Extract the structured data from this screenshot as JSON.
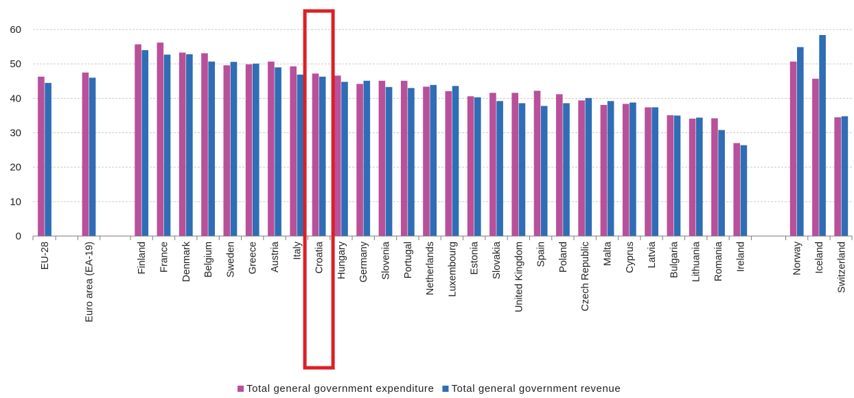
{
  "chart_data": {
    "type": "bar",
    "title": "",
    "xlabel": "",
    "ylabel": "",
    "ylim": [
      0,
      60
    ],
    "yticks": [
      0,
      10,
      20,
      30,
      40,
      50,
      60
    ],
    "grid": true,
    "legend_position": "bottom-center",
    "categories": [
      "EU-28",
      "Euro area (EA-19)",
      "Finland",
      "France",
      "Denmark",
      "Belgium",
      "Sweden",
      "Greece",
      "Austria",
      "Italy",
      "Croatia",
      "Hungary",
      "Germany",
      "Slovenia",
      "Portugal",
      "Netherlands",
      "Luxembourg",
      "Estonia",
      "Slovakia",
      "United Kingdom",
      "Spain",
      "Poland",
      "Czech Republic",
      "Malta",
      "Cyprus",
      "Latvia",
      "Bulgaria",
      "Lithuania",
      "Romania",
      "Ireland",
      "Norway",
      "Iceland",
      "Switzerland"
    ],
    "series": [
      {
        "name": "Total general government expenditure",
        "color": "#b8509a",
        "values": [
          46.3,
          47.5,
          55.7,
          56.2,
          53.3,
          53.1,
          49.6,
          49.9,
          50.7,
          49.3,
          47.2,
          46.6,
          44.2,
          45.1,
          45.1,
          43.4,
          42.1,
          40.6,
          41.6,
          41.6,
          42.2,
          41.2,
          39.4,
          38.1,
          38.4,
          37.4,
          35.1,
          34.1,
          34.2,
          27.0,
          50.7,
          45.7,
          34.5
        ]
      },
      {
        "name": "Total general government revenue",
        "color": "#2f6db5",
        "values": [
          44.5,
          46.0,
          54.0,
          52.7,
          52.8,
          50.7,
          50.6,
          50.1,
          49.0,
          46.9,
          46.3,
          44.8,
          45.1,
          43.3,
          43.0,
          43.9,
          43.6,
          40.3,
          39.2,
          38.6,
          37.8,
          38.6,
          40.1,
          39.2,
          38.8,
          37.4,
          35.0,
          34.4,
          30.8,
          26.4,
          54.9,
          58.4,
          34.8
        ]
      }
    ],
    "highlight": {
      "category": "Croatia",
      "color": "#dd1f26"
    }
  }
}
